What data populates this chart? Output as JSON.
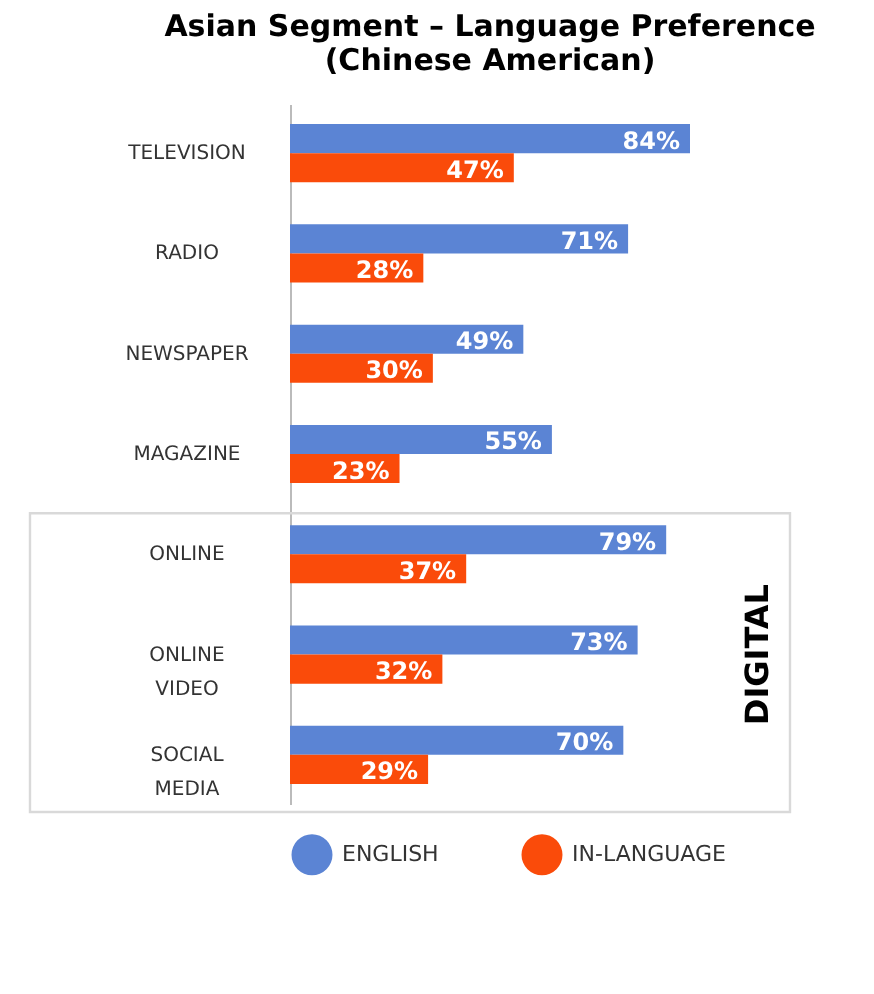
{
  "chart_data": {
    "type": "bar",
    "orientation": "horizontal",
    "title": "Asian Segment – Language Preference",
    "subtitle": "(Chinese American)",
    "categories": [
      "TELEVISION",
      "RADIO",
      "NEWSPAPER",
      "MAGAZINE",
      "ONLINE",
      "ONLINE VIDEO",
      "SOCIAL MEDIA"
    ],
    "series": [
      {
        "name": "ENGLISH",
        "color": "#5b84d4",
        "values": [
          84,
          71,
          49,
          55,
          79,
          73,
          70
        ],
        "value_labels": [
          "84%",
          "71%",
          "49%",
          "55%",
          "79%",
          "73%",
          "70%"
        ]
      },
      {
        "name": "IN-LANGUAGE",
        "color": "#fa4b0a",
        "values": [
          47,
          28,
          30,
          23,
          37,
          32,
          29
        ],
        "value_labels": [
          "47%",
          "28%",
          "30%",
          "23%",
          "37%",
          "32%",
          "29%"
        ]
      }
    ],
    "annotations": [
      "DIGITAL"
    ],
    "legend": "bottom"
  }
}
